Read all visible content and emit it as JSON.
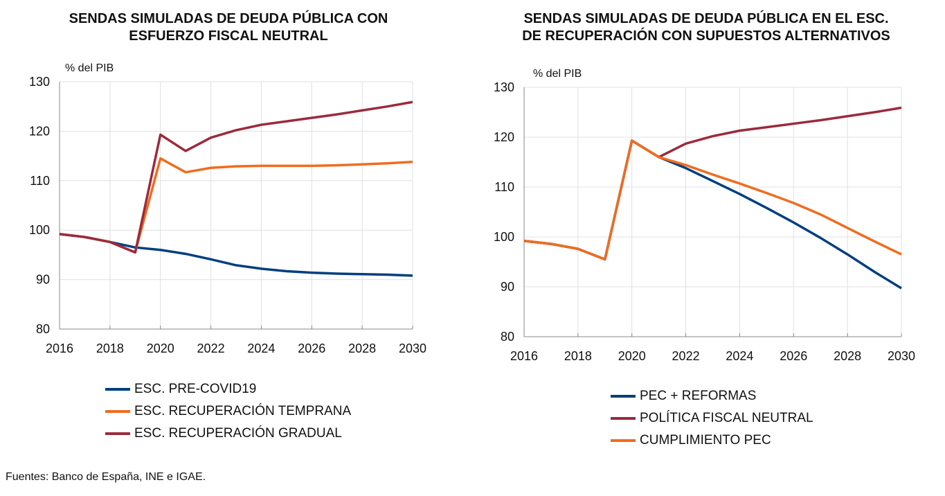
{
  "chart_data": [
    {
      "type": "line",
      "title": "SENDAS SIMULADAS DE DEUDA PÚBLICA CON ESFUERZO FISCAL NEUTRAL",
      "title_lines": [
        "SENDAS SIMULADAS DE DEUDA PÚBLICA CON",
        "ESFUERZO FISCAL NEUTRAL"
      ],
      "ylabel": "% del PIB",
      "xlim": [
        2016,
        2030
      ],
      "ylim": [
        80,
        130
      ],
      "xticks": [
        2016,
        2018,
        2020,
        2022,
        2024,
        2026,
        2028,
        2030
      ],
      "yticks": [
        80,
        90,
        100,
        110,
        120,
        130
      ],
      "grid": true,
      "legend": "bottom",
      "x": [
        2016,
        2017,
        2018,
        2019,
        2020,
        2021,
        2022,
        2023,
        2024,
        2025,
        2026,
        2027,
        2028,
        2029,
        2030
      ],
      "series": [
        {
          "name": "ESC. PRE-COVID19",
          "color": "#003f7f",
          "values": [
            99.2,
            98.6,
            97.6,
            96.5,
            96.0,
            95.2,
            94.1,
            92.9,
            92.2,
            91.7,
            91.4,
            91.2,
            91.1,
            91.0,
            90.8
          ]
        },
        {
          "name": "ESC. RECUPERACIÓN TEMPRANA",
          "color": "#f06c1e",
          "values": [
            99.2,
            98.6,
            97.6,
            95.5,
            114.5,
            111.7,
            112.6,
            112.9,
            113.0,
            113.0,
            113.0,
            113.1,
            113.3,
            113.5,
            113.8
          ]
        },
        {
          "name": "ESC. RECUPERACIÓN GRADUAL",
          "color": "#9c2a3c",
          "values": [
            99.2,
            98.6,
            97.6,
            95.5,
            119.3,
            116.0,
            118.7,
            120.2,
            121.3,
            122.0,
            122.7,
            123.4,
            124.2,
            125.0,
            125.9
          ]
        }
      ]
    },
    {
      "type": "line",
      "title": "SENDAS SIMULADAS DE DEUDA PÚBLICA EN EL ESC. DE RECUPERACIÓN CON SUPUESTOS ALTERNATIVOS",
      "title_lines": [
        "SENDAS SIMULADAS DE DEUDA PÚBLICA EN EL ESC.",
        "DE RECUPERACIÓN CON SUPUESTOS ALTERNATIVOS"
      ],
      "ylabel": "% del PIB",
      "xlim": [
        2016,
        2030
      ],
      "ylim": [
        80,
        130
      ],
      "xticks": [
        2016,
        2018,
        2020,
        2022,
        2024,
        2026,
        2028,
        2030
      ],
      "yticks": [
        80,
        90,
        100,
        110,
        120,
        130
      ],
      "grid": true,
      "legend": "bottom",
      "x": [
        2016,
        2017,
        2018,
        2019,
        2020,
        2021,
        2022,
        2023,
        2024,
        2025,
        2026,
        2027,
        2028,
        2029,
        2030
      ],
      "series": [
        {
          "name": "PEC + REFORMAS",
          "color": "#003f7f",
          "values": [
            99.2,
            98.6,
            97.6,
            95.5,
            119.3,
            116.0,
            113.8,
            111.2,
            108.6,
            105.8,
            102.9,
            99.8,
            96.5,
            93.0,
            89.7
          ]
        },
        {
          "name": "POLÍTICA FISCAL NEUTRAL",
          "color": "#9c2a3c",
          "values": [
            99.2,
            98.6,
            97.6,
            95.5,
            119.3,
            116.0,
            118.7,
            120.2,
            121.3,
            122.0,
            122.7,
            123.4,
            124.2,
            125.0,
            125.9
          ]
        },
        {
          "name": "CUMPLIMIENTO PEC",
          "color": "#f06c1e",
          "values": [
            99.2,
            98.6,
            97.6,
            95.5,
            119.3,
            116.0,
            114.4,
            112.5,
            110.7,
            108.8,
            106.8,
            104.5,
            101.8,
            99.1,
            96.5
          ]
        }
      ]
    }
  ],
  "source": "Fuentes: Banco de España, INE e IGAE."
}
